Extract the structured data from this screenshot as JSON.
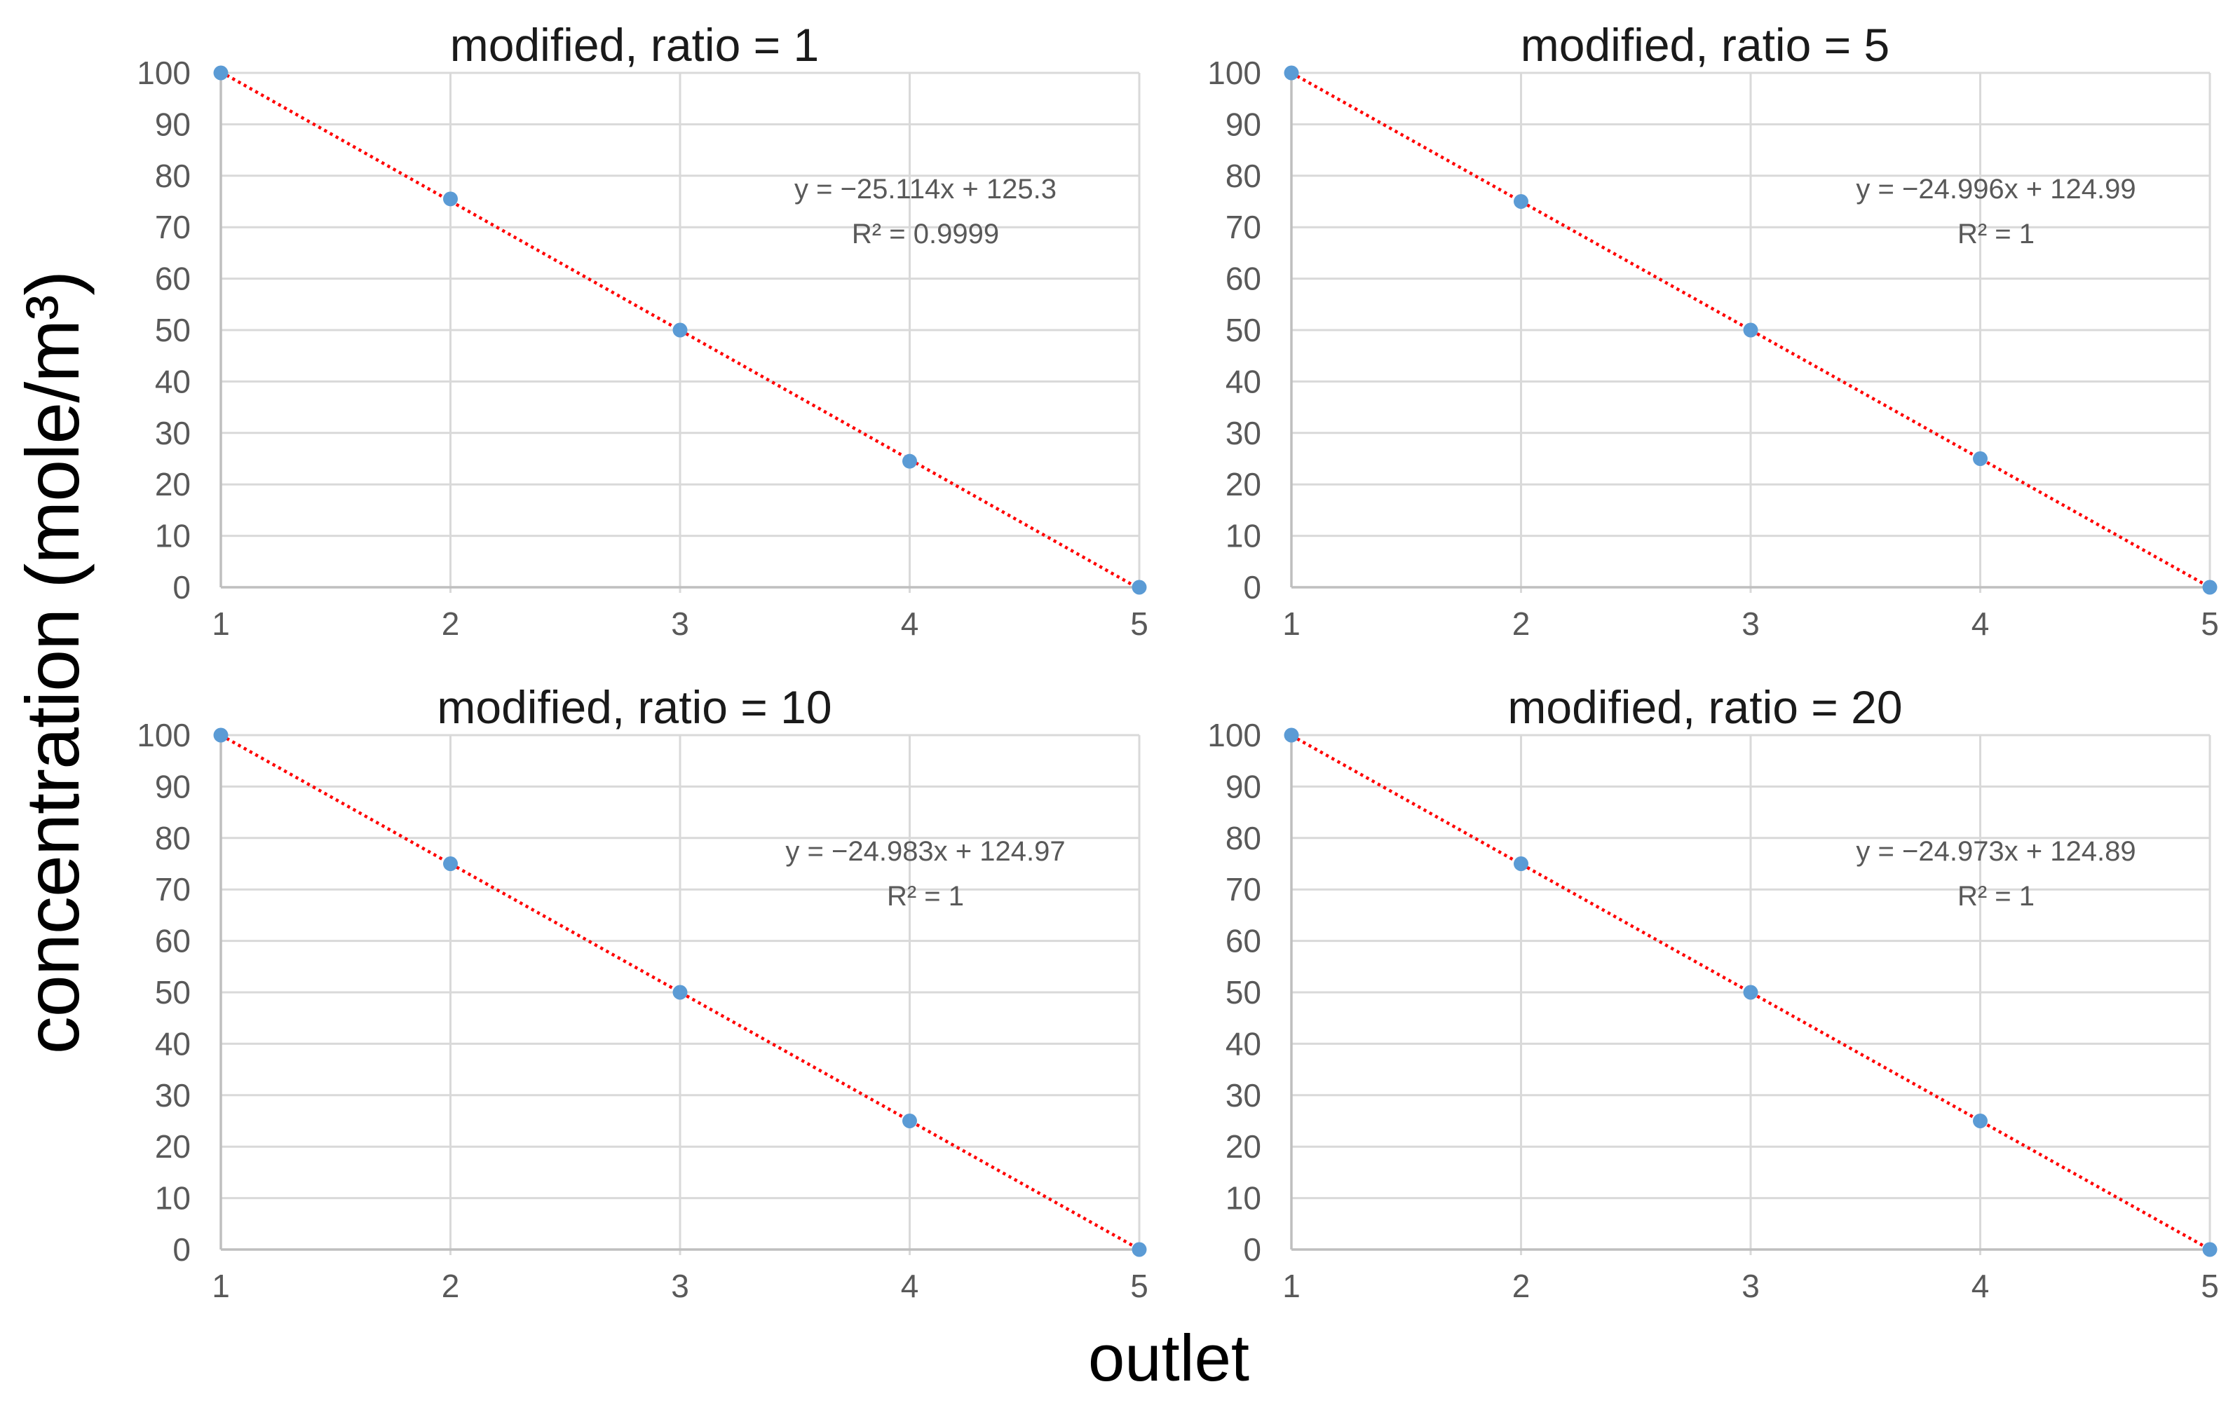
{
  "style": {
    "background_color": "#ffffff",
    "marker_color": "#5b9bd5",
    "trendline_color": "#ff0000",
    "gridline_color": "#d9d9d9",
    "axis_line_color": "#bfbfbf",
    "tick_text_color": "#595959",
    "equation_text_color": "#595959",
    "title_text_color": "#1a1a1a",
    "axis_label_text_color": "#000000"
  },
  "chart_data": {
    "type": "scatter",
    "layout": "2x2-grid",
    "shared_ylabel": "concentration (mole/m³)",
    "shared_xlabel": "outlet",
    "xlim": [
      1,
      5
    ],
    "ylim": [
      0,
      100
    ],
    "x_ticks": [
      1,
      2,
      3,
      4,
      5
    ],
    "y_ticks": [
      0,
      10,
      20,
      30,
      40,
      50,
      60,
      70,
      80,
      90,
      100
    ],
    "grid": true,
    "legend": "none",
    "trendline_style": "dotted",
    "charts": [
      {
        "title": "modified, ratio = 1",
        "x": [
          1,
          2,
          3,
          4,
          5
        ],
        "y": [
          100,
          75.5,
          50,
          24.5,
          0
        ],
        "trendline": {
          "slope": -25.114,
          "intercept": 125.3
        },
        "equation_label": "y = −25.114x + 125.3",
        "r2_label": "R² = 0.9999"
      },
      {
        "title": "modified, ratio = 5",
        "x": [
          1,
          2,
          3,
          4,
          5
        ],
        "y": [
          100,
          75,
          50,
          25,
          0
        ],
        "trendline": {
          "slope": -24.996,
          "intercept": 124.99
        },
        "equation_label": "y = −24.996x + 124.99",
        "r2_label": "R² = 1"
      },
      {
        "title": "modified, ratio = 10",
        "x": [
          1,
          2,
          3,
          4,
          5
        ],
        "y": [
          100,
          75,
          50,
          25,
          0
        ],
        "trendline": {
          "slope": -24.983,
          "intercept": 124.97
        },
        "equation_label": "y = −24.983x + 124.97",
        "r2_label": "R² = 1"
      },
      {
        "title": "modified, ratio = 20",
        "x": [
          1,
          2,
          3,
          4,
          5
        ],
        "y": [
          100,
          75,
          50,
          25,
          0
        ],
        "trendline": {
          "slope": -24.973,
          "intercept": 124.89
        },
        "equation_label": "y = −24.973x + 124.89",
        "r2_label": "R² = 1"
      }
    ]
  }
}
